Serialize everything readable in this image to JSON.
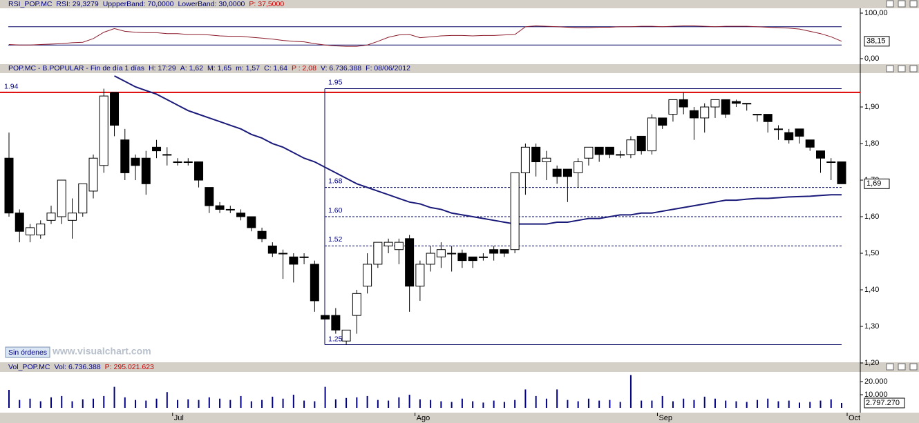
{
  "chart_data": [
    {
      "type": "line",
      "header": [
        {
          "text": "RSI_POP.MC",
          "color": "#000080"
        },
        {
          "text": "RSI: 29,3279",
          "color": "#000080"
        },
        {
          "text": "UppperBand: 70,0000",
          "color": "#000080"
        },
        {
          "text": "LowerBand: 30,0000",
          "color": "#000080"
        },
        {
          "text": "P: 37,5000",
          "color": "#cc0000"
        }
      ],
      "series": [
        {
          "name": "RSI_POP.MC",
          "color": "#8b1a2a",
          "values": [
            31,
            30,
            30,
            31,
            32,
            33,
            35,
            36,
            44,
            58,
            66,
            60,
            58,
            57,
            57,
            55,
            55,
            53,
            53,
            52,
            50,
            49,
            49,
            47,
            45,
            43,
            40,
            38,
            37,
            33,
            30,
            28,
            27,
            27,
            30,
            38,
            47,
            52,
            53,
            46,
            48,
            50,
            51,
            51,
            50,
            51,
            51,
            52,
            53,
            70,
            72,
            71,
            70,
            69,
            68,
            68,
            69,
            69,
            70,
            70,
            71,
            71,
            70,
            71,
            72,
            72,
            71,
            70,
            71,
            71,
            71,
            70,
            69,
            68,
            67,
            65,
            60,
            55,
            48,
            38.15
          ]
        }
      ],
      "bands": {
        "values": [
          70,
          30
        ],
        "color": "#000060"
      },
      "last": {
        "value": 38.15,
        "label": "38,15"
      },
      "ylim": [
        -10.6,
        110.6
      ],
      "yticks": [
        {
          "value": 100,
          "label": "100,00"
        },
        {
          "value": 0,
          "label": "0,00"
        }
      ]
    },
    {
      "type": "candlestick",
      "header": [
        {
          "text": "POP.MC - B.POPULAR - Fin de día 1 días",
          "color": "#000080"
        },
        {
          "text": "H: 17:29",
          "color": "#000080"
        },
        {
          "text": "A: 1,62",
          "color": "#000080"
        },
        {
          "text": "M: 1,65",
          "color": "#000080"
        },
        {
          "text": "m: 1,57",
          "color": "#000080"
        },
        {
          "text": "C: 1,64",
          "color": "#000080"
        },
        {
          "text": "P : 2,08",
          "color": "#cc0000"
        },
        {
          "text": "V: 6.736.388",
          "color": "#000080"
        },
        {
          "text": "F: 08/06/2012",
          "color": "#000080"
        }
      ],
      "open": [
        1.76,
        1.61,
        1.55,
        1.55,
        1.59,
        1.6,
        1.59,
        1.61,
        1.67,
        1.74,
        1.94,
        1.81,
        1.76,
        1.76,
        1.79,
        1.77,
        1.75,
        1.75,
        1.75,
        1.68,
        1.63,
        1.62,
        1.61,
        1.6,
        1.56,
        1.52,
        1.5,
        1.49,
        1.49,
        1.47,
        1.33,
        1.33,
        1.26,
        1.33,
        1.41,
        1.47,
        1.52,
        1.51,
        1.54,
        1.41,
        1.47,
        1.49,
        1.5,
        1.5,
        1.49,
        1.49,
        1.51,
        1.51,
        1.51,
        1.72,
        1.79,
        1.75,
        1.73,
        1.73,
        1.72,
        1.76,
        1.79,
        1.79,
        1.77,
        1.77,
        1.82,
        1.78,
        1.87,
        1.88,
        1.92,
        1.89,
        1.87,
        1.9,
        1.92,
        1.915,
        1.91,
        1.88,
        1.88,
        1.84,
        1.83,
        1.84,
        1.81,
        1.78,
        1.75,
        1.75
      ],
      "high": [
        1.83,
        1.62,
        1.58,
        1.59,
        1.63,
        1.7,
        1.65,
        1.69,
        1.77,
        1.95,
        1.94,
        1.84,
        1.77,
        1.78,
        1.81,
        1.79,
        1.76,
        1.76,
        1.75,
        1.68,
        1.64,
        1.63,
        1.62,
        1.6,
        1.57,
        1.53,
        1.51,
        1.5,
        1.5,
        1.48,
        1.33,
        1.35,
        1.29,
        1.4,
        1.5,
        1.53,
        1.54,
        1.54,
        1.55,
        1.48,
        1.52,
        1.53,
        1.52,
        1.51,
        1.49,
        1.5,
        1.52,
        1.51,
        1.72,
        1.8,
        1.8,
        1.78,
        1.74,
        1.73,
        1.76,
        1.79,
        1.79,
        1.79,
        1.78,
        1.82,
        1.82,
        1.88,
        1.87,
        1.92,
        1.94,
        1.9,
        1.91,
        1.92,
        1.92,
        1.92,
        1.91,
        1.88,
        1.88,
        1.85,
        1.84,
        1.84,
        1.81,
        1.78,
        1.76,
        1.75
      ],
      "low": [
        1.6,
        1.53,
        1.53,
        1.54,
        1.58,
        1.58,
        1.54,
        1.6,
        1.65,
        1.72,
        1.82,
        1.7,
        1.7,
        1.66,
        1.76,
        1.74,
        1.74,
        1.74,
        1.68,
        1.61,
        1.61,
        1.61,
        1.59,
        1.56,
        1.53,
        1.49,
        1.43,
        1.42,
        1.47,
        1.34,
        1.32,
        1.28,
        1.25,
        1.28,
        1.39,
        1.46,
        1.5,
        1.47,
        1.34,
        1.37,
        1.45,
        1.46,
        1.45,
        1.46,
        1.46,
        1.48,
        1.48,
        1.49,
        1.5,
        1.66,
        1.71,
        1.7,
        1.69,
        1.64,
        1.68,
        1.74,
        1.75,
        1.76,
        1.76,
        1.76,
        1.77,
        1.77,
        1.84,
        1.86,
        1.88,
        1.81,
        1.83,
        1.87,
        1.87,
        1.9,
        1.89,
        1.86,
        1.83,
        1.81,
        1.8,
        1.8,
        1.78,
        1.72,
        1.7,
        1.69
      ],
      "close": [
        1.61,
        1.56,
        1.57,
        1.58,
        1.61,
        1.7,
        1.61,
        1.69,
        1.76,
        1.93,
        1.85,
        1.72,
        1.74,
        1.69,
        1.78,
        1.77,
        1.75,
        1.75,
        1.7,
        1.63,
        1.62,
        1.62,
        1.6,
        1.57,
        1.54,
        1.5,
        1.5,
        1.47,
        1.49,
        1.37,
        1.32,
        1.29,
        1.29,
        1.39,
        1.47,
        1.53,
        1.53,
        1.53,
        1.41,
        1.47,
        1.5,
        1.51,
        1.5,
        1.48,
        1.48,
        1.49,
        1.5,
        1.5,
        1.72,
        1.79,
        1.75,
        1.76,
        1.71,
        1.71,
        1.75,
        1.79,
        1.77,
        1.77,
        1.77,
        1.81,
        1.78,
        1.87,
        1.85,
        1.92,
        1.9,
        1.87,
        1.9,
        1.92,
        1.88,
        1.91,
        1.91,
        1.88,
        1.86,
        1.84,
        1.81,
        1.82,
        1.79,
        1.76,
        1.75,
        1.69
      ],
      "moving_average": {
        "color": "#1a1a7a",
        "values": [
          null,
          null,
          null,
          null,
          null,
          null,
          null,
          null,
          null,
          null,
          1.985,
          1.97,
          1.955,
          1.945,
          1.935,
          1.92,
          1.905,
          1.89,
          1.88,
          1.87,
          1.86,
          1.85,
          1.84,
          1.825,
          1.815,
          1.8,
          1.79,
          1.775,
          1.76,
          1.75,
          1.735,
          1.72,
          1.705,
          1.69,
          1.68,
          1.67,
          1.66,
          1.65,
          1.64,
          1.635,
          1.625,
          1.62,
          1.61,
          1.605,
          1.6,
          1.595,
          1.59,
          1.585,
          1.58,
          1.58,
          1.58,
          1.58,
          1.585,
          1.585,
          1.59,
          1.595,
          1.595,
          1.6,
          1.605,
          1.605,
          1.61,
          1.61,
          1.615,
          1.62,
          1.625,
          1.63,
          1.635,
          1.64,
          1.645,
          1.645,
          1.648,
          1.65,
          1.65,
          1.652,
          1.654,
          1.655,
          1.656,
          1.658,
          1.66,
          1.66
        ]
      },
      "resistance": {
        "value": 1.94,
        "label": "1.94",
        "color": "#dd0000"
      },
      "fib_levels": [
        {
          "value": 1.95,
          "label": "1.95"
        },
        {
          "value": 1.68,
          "label": "1.68"
        },
        {
          "value": 1.6,
          "label": "1.60"
        },
        {
          "value": 1.52,
          "label": "1.52"
        },
        {
          "value": 1.25,
          "label": "1.25"
        }
      ],
      "last": {
        "value": 1.69,
        "label": "1,69"
      },
      "ylim": [
        1.2038,
        1.9925
      ],
      "yticks": [
        {
          "value": 1.2,
          "label": "1,20"
        },
        {
          "value": 1.3,
          "label": "1,30"
        },
        {
          "value": 1.4,
          "label": "1,40"
        },
        {
          "value": 1.5,
          "label": "1,50"
        },
        {
          "value": 1.6,
          "label": "1,60"
        },
        {
          "value": 1.7,
          "label": "1,70"
        },
        {
          "value": 1.8,
          "label": "1,80"
        },
        {
          "value": 1.9,
          "label": "1,90"
        }
      ]
    },
    {
      "type": "bar",
      "header": [
        {
          "text": "Vol_POP.MC",
          "color": "#000080"
        },
        {
          "text": "Vol: 6.736.388",
          "color": "#000080"
        },
        {
          "text": "P: 295.021.623",
          "color": "#cc0000"
        }
      ],
      "categories": [
        null,
        null,
        null,
        null,
        null,
        null,
        null,
        null,
        null,
        null,
        null,
        null,
        null,
        null,
        null,
        "Jul",
        null,
        null,
        null,
        null,
        null,
        null,
        null,
        null,
        null,
        null,
        null,
        null,
        null,
        null,
        null,
        null,
        null,
        null,
        null,
        null,
        null,
        null,
        "Ago",
        null,
        null,
        null,
        null,
        null,
        null,
        null,
        null,
        null,
        null,
        null,
        null,
        null,
        null,
        null,
        null,
        null,
        null,
        null,
        null,
        null,
        null,
        "Sep",
        null,
        null,
        null,
        null,
        null,
        null,
        null,
        null,
        null,
        null,
        null,
        null,
        null,
        null,
        null,
        null,
        null,
        "Oct"
      ],
      "series": [
        {
          "name": "Vol_POP.MC",
          "color": "#000080",
          "values": [
            13700,
            6000,
            7000,
            5000,
            8000,
            9000,
            5000,
            6500,
            7000,
            9000,
            16000,
            8000,
            6000,
            5500,
            7000,
            12000,
            6000,
            6500,
            6000,
            8000,
            7000,
            6000,
            9000,
            5000,
            6000,
            8500,
            7000,
            10000,
            5500,
            5000,
            16000,
            6500,
            7500,
            8000,
            9000,
            6000,
            5500,
            8000,
            10000,
            6500,
            6000,
            5000,
            4500,
            7000,
            5000,
            4000,
            5500,
            4500,
            6000,
            14000,
            9000,
            7000,
            14000,
            6000,
            5000,
            7000,
            5500,
            6000,
            4500,
            25000,
            5500,
            5500,
            9000,
            5000,
            7000,
            6000,
            8500,
            7000,
            5500,
            5000,
            4500,
            6000,
            7000,
            5000,
            5500,
            4000,
            4500,
            5500,
            6500,
            3700
          ]
        }
      ],
      "last_label": "2.797.270",
      "ylim": [
        -3158,
        26842
      ],
      "yticks": [
        {
          "value": 10000,
          "label": "10.000"
        },
        {
          "value": 20000,
          "label": "20.000"
        }
      ]
    }
  ],
  "ui": {
    "button": "Sin órdenes",
    "watermark": "www.visualchart.com"
  }
}
